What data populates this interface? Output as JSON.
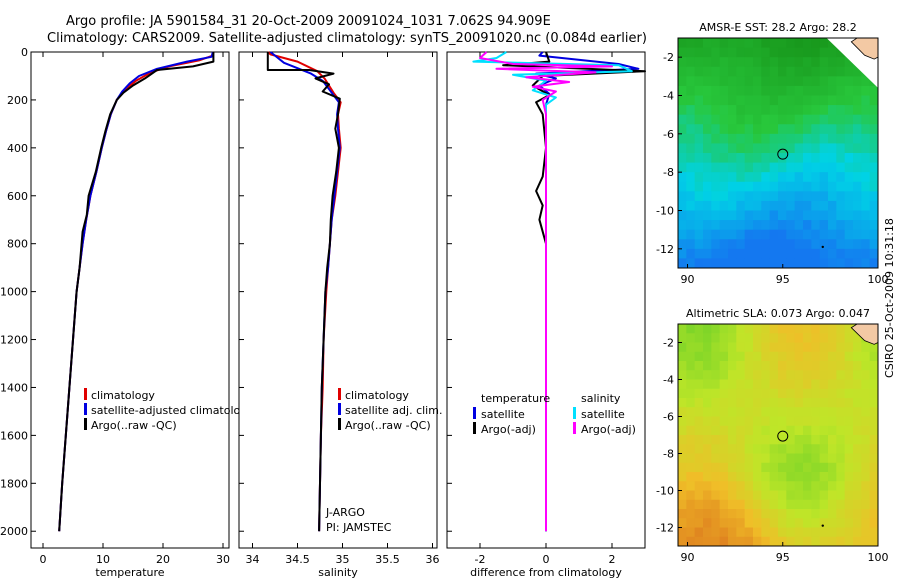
{
  "title_line1": "Argo profile: JA 5901584_31 20-Oct-2009 20091024_1031 7.062S 94.909E",
  "title_line2": "Climatology: CARS2009. Satellite-adjusted climatology: synTS_20091020.nc (0.084d earlier)",
  "footer_text": "CSIRO 25-Oct-2009 10:31:18",
  "colors": {
    "climatology": "#e00000",
    "satellite": "#0000e0",
    "argo": "#000000",
    "argo_adj": "#ff00ff",
    "sat_sal": "#00e0ff"
  },
  "chart_data": [
    {
      "type": "line",
      "id": "temperature",
      "xlabel": "temperature",
      "ylabel": "",
      "xlim": [
        -2,
        31
      ],
      "ylim": [
        2070,
        0
      ],
      "xticks": [
        0,
        10,
        20,
        30
      ],
      "yticks": [
        0,
        200,
        400,
        600,
        800,
        1000,
        1200,
        1400,
        1600,
        1800,
        2000
      ],
      "legend": [
        "climatology",
        "satellite-adjusted climatology",
        "Argo(..raw -QC)"
      ],
      "series": [
        {
          "name": "climatology",
          "color": "#e00000",
          "points": [
            [
              28.4,
              0
            ],
            [
              28.3,
              15
            ],
            [
              26,
              35
            ],
            [
              21,
              60
            ],
            [
              18,
              85
            ],
            [
              15.5,
              120
            ],
            [
              13.5,
              160
            ],
            [
              12.3,
              200
            ],
            [
              11.3,
              260
            ],
            [
              10.5,
              330
            ],
            [
              9.8,
              400
            ],
            [
              8.9,
              500
            ],
            [
              7.9,
              600
            ],
            [
              7.2,
              700
            ],
            [
              6.6,
              800
            ],
            [
              6.1,
              900
            ],
            [
              5.6,
              1000
            ],
            [
              5,
              1200
            ],
            [
              4.4,
              1400
            ],
            [
              3.8,
              1600
            ],
            [
              3.2,
              1800
            ],
            [
              2.7,
              2000
            ]
          ]
        },
        {
          "name": "satellite-adjusted climatology",
          "color": "#0000e0",
          "points": [
            [
              28.3,
              0
            ],
            [
              28.1,
              20
            ],
            [
              24,
              40
            ],
            [
              19,
              70
            ],
            [
              16,
              100
            ],
            [
              14.5,
              130
            ],
            [
              13.2,
              165
            ],
            [
              12.3,
              200
            ],
            [
              11.3,
              260
            ],
            [
              10.5,
              330
            ],
            [
              9.8,
              400
            ],
            [
              8.9,
              500
            ],
            [
              7.9,
              600
            ],
            [
              7.2,
              700
            ],
            [
              6.6,
              800
            ],
            [
              6.1,
              900
            ],
            [
              5.6,
              1000
            ],
            [
              5,
              1200
            ],
            [
              4.4,
              1400
            ],
            [
              3.8,
              1600
            ],
            [
              3.2,
              1800
            ],
            [
              2.7,
              2000
            ]
          ]
        },
        {
          "name": "Argo(..raw -QC)",
          "color": "#000000",
          "points": [
            [
              28.4,
              0
            ],
            [
              28.4,
              40
            ],
            [
              25,
              60
            ],
            [
              19,
              75
            ],
            [
              17,
              110
            ],
            [
              15,
              140
            ],
            [
              13.4,
              170
            ],
            [
              12.3,
              200
            ],
            [
              11.2,
              260
            ],
            [
              10.4,
              330
            ],
            [
              9.7,
              400
            ],
            [
              8.8,
              500
            ],
            [
              7.6,
              600
            ],
            [
              7.3,
              680
            ],
            [
              6.6,
              750
            ],
            [
              6.1,
              900
            ],
            [
              5.6,
              1000
            ],
            [
              5,
              1200
            ],
            [
              4.4,
              1400
            ],
            [
              3.8,
              1600
            ],
            [
              3.2,
              1800
            ],
            [
              2.7,
              2000
            ]
          ]
        }
      ]
    },
    {
      "type": "line",
      "id": "salinity",
      "xlabel": "salinity",
      "xlim": [
        33.85,
        36.05
      ],
      "ylim": [
        2070,
        0
      ],
      "xticks": [
        34,
        34.5,
        35,
        35.5,
        36
      ],
      "legend": [
        "climatology",
        "satellite adj. clim.",
        "Argo(..raw -QC)"
      ],
      "annotations": [
        "J-ARGO",
        "PI: JAMSTEC"
      ],
      "series": [
        {
          "name": "climatology",
          "color": "#e00000",
          "points": [
            [
              34.17,
              0
            ],
            [
              34.2,
              10
            ],
            [
              34.5,
              40
            ],
            [
              34.72,
              80
            ],
            [
              34.8,
              110
            ],
            [
              34.9,
              170
            ],
            [
              34.98,
              210
            ],
            [
              34.95,
              260
            ],
            [
              34.96,
              320
            ],
            [
              34.98,
              400
            ],
            [
              34.95,
              500
            ],
            [
              34.92,
              600
            ],
            [
              34.88,
              700
            ],
            [
              34.86,
              800
            ],
            [
              34.84,
              900
            ],
            [
              34.82,
              1000
            ],
            [
              34.79,
              1200
            ],
            [
              34.78,
              1400
            ],
            [
              34.76,
              1600
            ],
            [
              34.75,
              1800
            ],
            [
              34.74,
              2000
            ]
          ]
        },
        {
          "name": "satellite adj. clim.",
          "color": "#0000e0",
          "points": [
            [
              34.2,
              0
            ],
            [
              34.25,
              15
            ],
            [
              34.35,
              45
            ],
            [
              34.65,
              90
            ],
            [
              34.78,
              120
            ],
            [
              34.88,
              170
            ],
            [
              34.96,
              210
            ],
            [
              34.94,
              260
            ],
            [
              34.95,
              320
            ],
            [
              34.97,
              400
            ],
            [
              34.94,
              500
            ],
            [
              34.91,
              600
            ],
            [
              34.88,
              700
            ],
            [
              34.86,
              800
            ],
            [
              34.84,
              900
            ],
            [
              34.81,
              1000
            ],
            [
              34.79,
              1200
            ],
            [
              34.77,
              1400
            ],
            [
              34.76,
              1600
            ],
            [
              34.75,
              1800
            ],
            [
              34.74,
              2000
            ]
          ]
        },
        {
          "name": "Argo(..raw -QC)",
          "color": "#000000",
          "points": [
            [
              34.17,
              0
            ],
            [
              34.17,
              75
            ],
            [
              34.63,
              75
            ],
            [
              34.9,
              90
            ],
            [
              34.7,
              110
            ],
            [
              34.85,
              135
            ],
            [
              34.78,
              165
            ],
            [
              34.97,
              195
            ],
            [
              34.95,
              260
            ],
            [
              34.92,
              320
            ],
            [
              34.96,
              400
            ],
            [
              34.93,
              500
            ],
            [
              34.89,
              600
            ],
            [
              34.87,
              700
            ],
            [
              34.86,
              800
            ],
            [
              34.83,
              900
            ],
            [
              34.81,
              1000
            ],
            [
              34.79,
              1200
            ],
            [
              34.77,
              1400
            ],
            [
              34.76,
              1600
            ],
            [
              34.75,
              1800
            ],
            [
              34.74,
              2000
            ]
          ]
        }
      ]
    },
    {
      "type": "line",
      "id": "difference",
      "xlabel": "difference from climatology",
      "xlim": [
        -3,
        3
      ],
      "ylim": [
        2070,
        0
      ],
      "xticks": [
        -2,
        0,
        2
      ],
      "legend_temperature_title": "temperature",
      "legend_salinity_title": "salinity",
      "legend": [
        "satellite",
        "Argo(-adj)",
        "satellite",
        "Argo(-adj)"
      ],
      "series": [
        {
          "name": "temperature satellite",
          "color": "#0000e0",
          "points": [
            [
              -0.1,
              0
            ],
            [
              -0.2,
              15
            ],
            [
              2.2,
              50
            ],
            [
              2.8,
              70
            ],
            [
              -0.3,
              90
            ],
            [
              0.3,
              110
            ],
            [
              -0.2,
              140
            ],
            [
              0.1,
              175
            ],
            [
              0,
              220
            ],
            [
              0,
              400
            ],
            [
              0,
              600
            ],
            [
              0,
              800
            ],
            [
              0,
              1000
            ],
            [
              0,
              1400
            ],
            [
              0,
              1800
            ],
            [
              0,
              2000
            ]
          ]
        },
        {
          "name": "temperature Argo(-adj)",
          "color": "#000000",
          "points": [
            [
              0,
              0
            ],
            [
              0.1,
              40
            ],
            [
              -1.3,
              55
            ],
            [
              3.0,
              80
            ],
            [
              -0.1,
              100
            ],
            [
              -0.4,
              140
            ],
            [
              0.1,
              180
            ],
            [
              -0.3,
              210
            ],
            [
              -0.1,
              260
            ],
            [
              0,
              400
            ],
            [
              -0.1,
              520
            ],
            [
              -0.3,
              580
            ],
            [
              -0.1,
              640
            ],
            [
              -0.2,
              700
            ],
            [
              0,
              800
            ],
            [
              0,
              1000
            ],
            [
              0,
              1400
            ],
            [
              0,
              1800
            ],
            [
              0,
              2000
            ]
          ]
        },
        {
          "name": "salinity satellite",
          "color": "#00e0ff",
          "points": [
            [
              -1.2,
              0
            ],
            [
              -1.5,
              25
            ],
            [
              -2.2,
              40
            ],
            [
              2.2,
              55
            ],
            [
              2.6,
              80
            ],
            [
              -1.0,
              95
            ],
            [
              0,
              120
            ],
            [
              -0.4,
              160
            ],
            [
              0.3,
              190
            ],
            [
              0,
              220
            ],
            [
              0,
              400
            ],
            [
              0,
              600
            ],
            [
              0,
              800
            ],
            [
              0,
              1000
            ],
            [
              0,
              1400
            ],
            [
              0,
              1800
            ],
            [
              0,
              2000
            ]
          ]
        },
        {
          "name": "salinity Argo(-adj)",
          "color": "#ff00ff",
          "points": [
            [
              -1.8,
              0
            ],
            [
              -2.0,
              25
            ],
            [
              -1.0,
              50
            ],
            [
              2.0,
              60
            ],
            [
              -1.5,
              70
            ],
            [
              1.5,
              85
            ],
            [
              -0.6,
              105
            ],
            [
              0.7,
              125
            ],
            [
              -0.4,
              145
            ],
            [
              0.3,
              165
            ],
            [
              -0.1,
              200
            ],
            [
              0,
              260
            ],
            [
              0,
              400
            ],
            [
              0,
              600
            ],
            [
              0,
              800
            ],
            [
              0,
              1000
            ],
            [
              0,
              1400
            ],
            [
              0,
              1800
            ],
            [
              0,
              2000
            ]
          ]
        }
      ]
    },
    {
      "type": "heatmap",
      "id": "sst_map",
      "title": "AMSR-E SST: 28.2 Argo: 28.2",
      "xlim": [
        89.5,
        100
      ],
      "ylim": [
        -13,
        -1
      ],
      "xticks": [
        90,
        95,
        100
      ],
      "yticks": [
        -2,
        -4,
        -6,
        -8,
        -10,
        -12
      ],
      "marker": [
        95,
        -7.06
      ]
    },
    {
      "type": "heatmap",
      "id": "sla_map",
      "title": "Altimetric SLA: 0.073 Argo: 0.047",
      "xlim": [
        89.5,
        100
      ],
      "ylim": [
        -13,
        -1
      ],
      "xticks": [
        90,
        95,
        100
      ],
      "yticks": [
        -2,
        -4,
        -6,
        -8,
        -10,
        -12
      ],
      "marker": [
        95,
        -7.06
      ]
    }
  ]
}
